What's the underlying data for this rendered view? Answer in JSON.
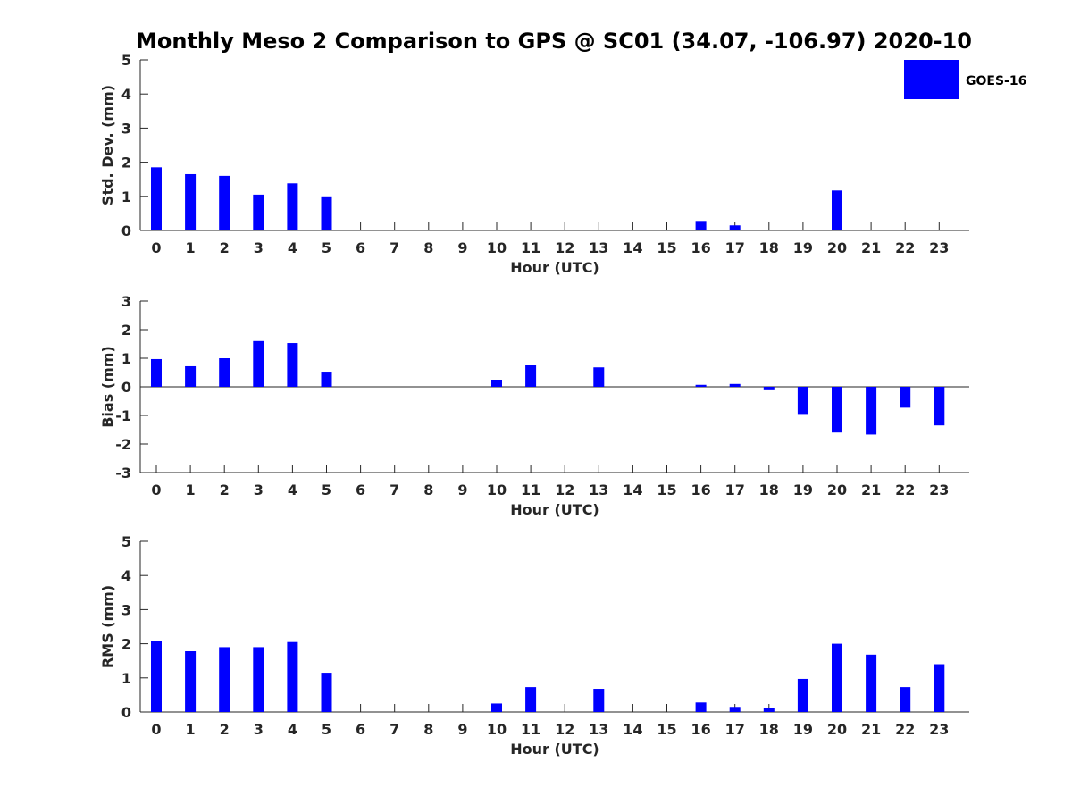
{
  "colors": {
    "bar": "#0000ff",
    "axis": "#262626",
    "background": "#ffffff"
  },
  "chart_data": {
    "type": "bar",
    "title": "Monthly Meso 2 Comparison to GPS @ SC01 (34.07, -106.97) 2020-10",
    "legend": {
      "label": "GOES-16",
      "placement": "top-right"
    },
    "categories": [
      "0",
      "1",
      "2",
      "3",
      "4",
      "5",
      "6",
      "7",
      "8",
      "9",
      "10",
      "11",
      "12",
      "13",
      "14",
      "15",
      "16",
      "17",
      "18",
      "19",
      "20",
      "21",
      "22",
      "23"
    ],
    "panels": [
      {
        "name": "std-dev",
        "ylabel": "Std. Dev. (mm)",
        "xlabel": "Hour (UTC)",
        "ylim": [
          0,
          5
        ],
        "yticks": [
          "0",
          "1",
          "2",
          "3",
          "4",
          "5"
        ],
        "series": [
          {
            "name": "GOES-16",
            "values": [
              1.85,
              1.65,
              1.6,
              1.05,
              1.38,
              1.0,
              null,
              null,
              null,
              null,
              null,
              null,
              null,
              null,
              null,
              null,
              0.28,
              0.15,
              null,
              null,
              1.17,
              null,
              null,
              null
            ]
          }
        ]
      },
      {
        "name": "bias",
        "ylabel": "Bias (mm)",
        "xlabel": "Hour (UTC)",
        "ylim": [
          -3,
          3
        ],
        "yticks": [
          "-3",
          "-2",
          "-1",
          "0",
          "1",
          "2",
          "3"
        ],
        "series": [
          {
            "name": "GOES-16",
            "values": [
              0.97,
              0.72,
              1.0,
              1.6,
              1.53,
              0.53,
              null,
              null,
              null,
              null,
              0.25,
              0.75,
              null,
              0.68,
              null,
              null,
              0.07,
              0.1,
              -0.12,
              -0.95,
              -1.6,
              -1.67,
              -0.73,
              -1.35
            ]
          }
        ]
      },
      {
        "name": "rms",
        "ylabel": "RMS (mm)",
        "xlabel": "Hour (UTC)",
        "ylim": [
          0,
          5
        ],
        "yticks": [
          "0",
          "1",
          "2",
          "3",
          "4",
          "5"
        ],
        "series": [
          {
            "name": "GOES-16",
            "values": [
              2.08,
              1.78,
              1.9,
              1.9,
              2.05,
              1.15,
              null,
              null,
              null,
              null,
              0.25,
              0.73,
              null,
              0.68,
              null,
              null,
              0.28,
              0.15,
              0.12,
              0.97,
              2.0,
              1.68,
              0.73,
              1.4
            ]
          }
        ]
      }
    ]
  }
}
